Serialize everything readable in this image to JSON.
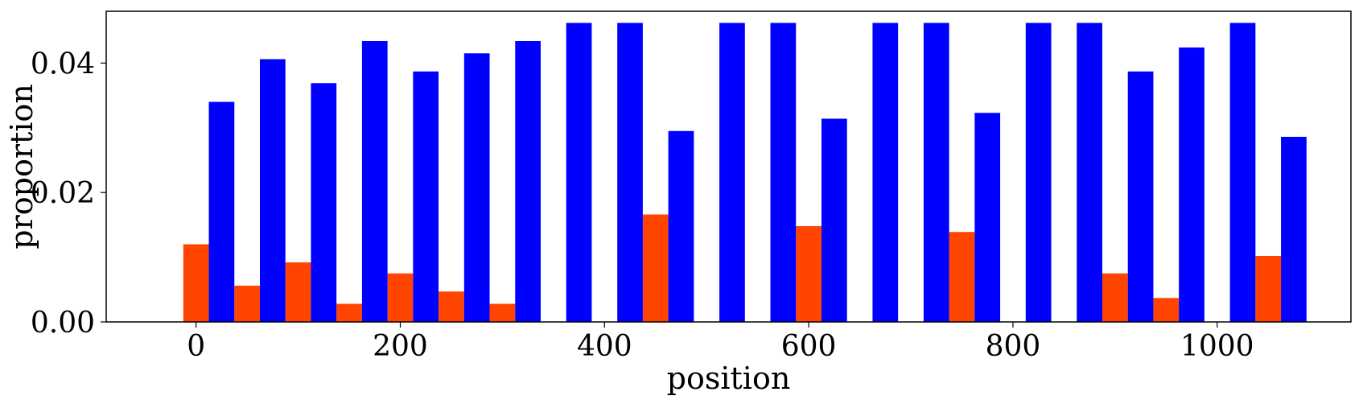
{
  "chart_data": {
    "type": "bar",
    "title": "",
    "xlabel": "position",
    "ylabel": "proportion",
    "xlim": [
      -88,
      1131
    ],
    "ylim": [
      0,
      0.048
    ],
    "bar_width": 25,
    "x_ticks": [
      0,
      200,
      400,
      600,
      800,
      1000
    ],
    "x_tick_labels": [
      "0",
      "200",
      "400",
      "600",
      "800",
      "1000"
    ],
    "y_ticks": [
      0,
      0.02,
      0.04
    ],
    "y_tick_labels": [
      "0.00",
      "0.02",
      "0.04"
    ],
    "grid": false,
    "series": [
      {
        "color": "#ff4500",
        "x": [
          0,
          50,
          100,
          150,
          200,
          250,
          300,
          350,
          400,
          450,
          500,
          550,
          600,
          650,
          700,
          750,
          800,
          850,
          900,
          950,
          1000,
          1050
        ],
        "values": [
          0.012,
          0.0056,
          0.0092,
          0.0028,
          0.0075,
          0.0047,
          0.0028,
          0.0,
          0.0,
          0.0166,
          0.0,
          0.0,
          0.0148,
          0.0,
          0.0,
          0.0139,
          0.0,
          0.0,
          0.0075,
          0.0037,
          0.0,
          0.0102
        ]
      },
      {
        "color": "#0000ff",
        "x": [
          25,
          75,
          125,
          175,
          225,
          275,
          325,
          375,
          425,
          475,
          525,
          575,
          625,
          675,
          725,
          775,
          825,
          875,
          925,
          975,
          1025,
          1075
        ],
        "values": [
          0.034,
          0.0406,
          0.0369,
          0.0434,
          0.0387,
          0.0415,
          0.0434,
          0.0462,
          0.0462,
          0.0295,
          0.0462,
          0.0462,
          0.0314,
          0.0462,
          0.0462,
          0.0323,
          0.0462,
          0.0462,
          0.0387,
          0.0424,
          0.0462,
          0.0286
        ]
      }
    ]
  }
}
